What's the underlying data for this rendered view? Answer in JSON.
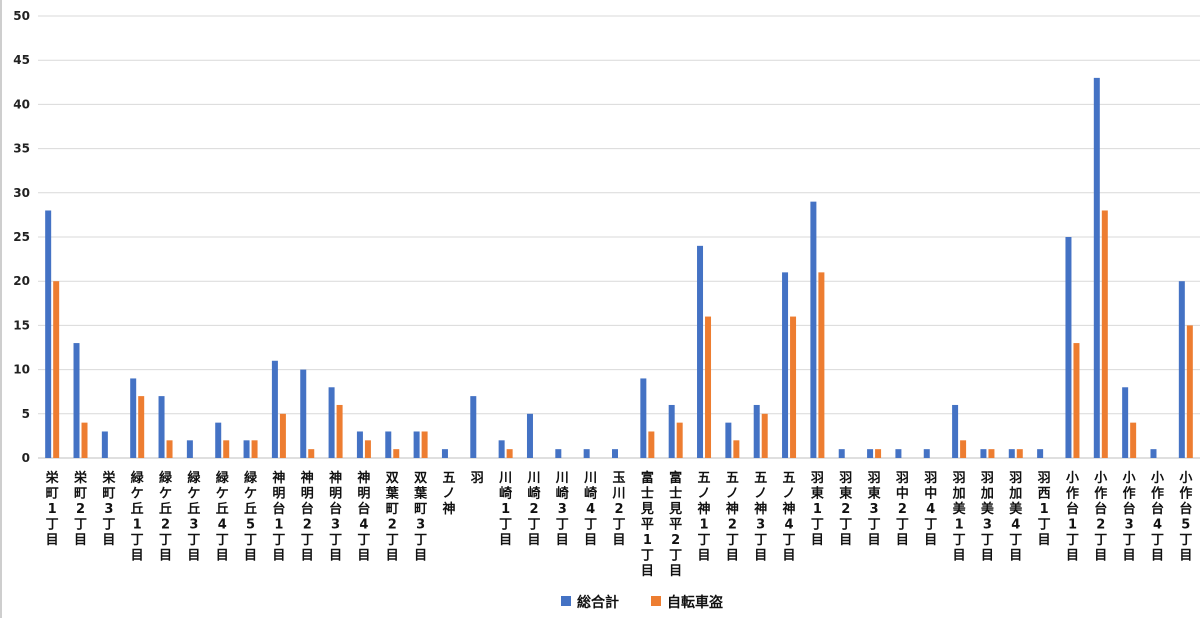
{
  "chart_data": {
    "type": "bar",
    "title": "",
    "xlabel": "",
    "ylabel": "",
    "ylim": [
      0,
      50
    ],
    "yticks": [
      0,
      5,
      10,
      15,
      20,
      25,
      30,
      35,
      40,
      45,
      50
    ],
    "grid": true,
    "legend_position": "bottom",
    "colors": {
      "series1": "#4472C4",
      "series2": "#ED7D31",
      "grid": "#d9d9d9",
      "axis": "#bfbfbf"
    },
    "categories": [
      "栄町1丁目",
      "栄町2丁目",
      "栄町3丁目",
      "緑ケ丘1丁目",
      "緑ケ丘2丁目",
      "緑ケ丘3丁目",
      "緑ケ丘4丁目",
      "緑ケ丘5丁目",
      "神明台1丁目",
      "神明台2丁目",
      "神明台3丁目",
      "神明台4丁目",
      "双葉町2丁目",
      "双葉町3丁目",
      "五ノ神",
      "羽",
      "川崎1丁目",
      "川崎2丁目",
      "川崎3丁目",
      "川崎4丁目",
      "玉川2丁目",
      "富士見平1丁目",
      "富士見平2丁目",
      "五ノ神1丁目",
      "五ノ神2丁目",
      "五ノ神3丁目",
      "五ノ神4丁目",
      "羽東1丁目",
      "羽東2丁目",
      "羽東3丁目",
      "羽中2丁目",
      "羽中4丁目",
      "羽加美1丁目",
      "羽加美3丁目",
      "羽加美4丁目",
      "羽西1丁目",
      "小作台1丁目",
      "小作台2丁目",
      "小作台3丁目",
      "小作台4丁目",
      "小作台5丁目"
    ],
    "series": [
      {
        "name": "総合計",
        "values": [
          28,
          13,
          3,
          9,
          7,
          2,
          4,
          2,
          11,
          10,
          8,
          3,
          3,
          3,
          1,
          7,
          2,
          5,
          1,
          1,
          1,
          9,
          6,
          24,
          4,
          6,
          21,
          29,
          1,
          1,
          1,
          1,
          6,
          1,
          1,
          1,
          25,
          43,
          8,
          1,
          20
        ]
      },
      {
        "name": "自転車盗",
        "values": [
          20,
          4,
          0,
          7,
          2,
          0,
          2,
          2,
          5,
          1,
          6,
          2,
          1,
          3,
          0,
          0,
          1,
          0,
          0,
          0,
          0,
          3,
          4,
          16,
          2,
          5,
          16,
          21,
          0,
          1,
          0,
          0,
          2,
          1,
          1,
          0,
          13,
          28,
          4,
          0,
          15
        ]
      }
    ]
  }
}
